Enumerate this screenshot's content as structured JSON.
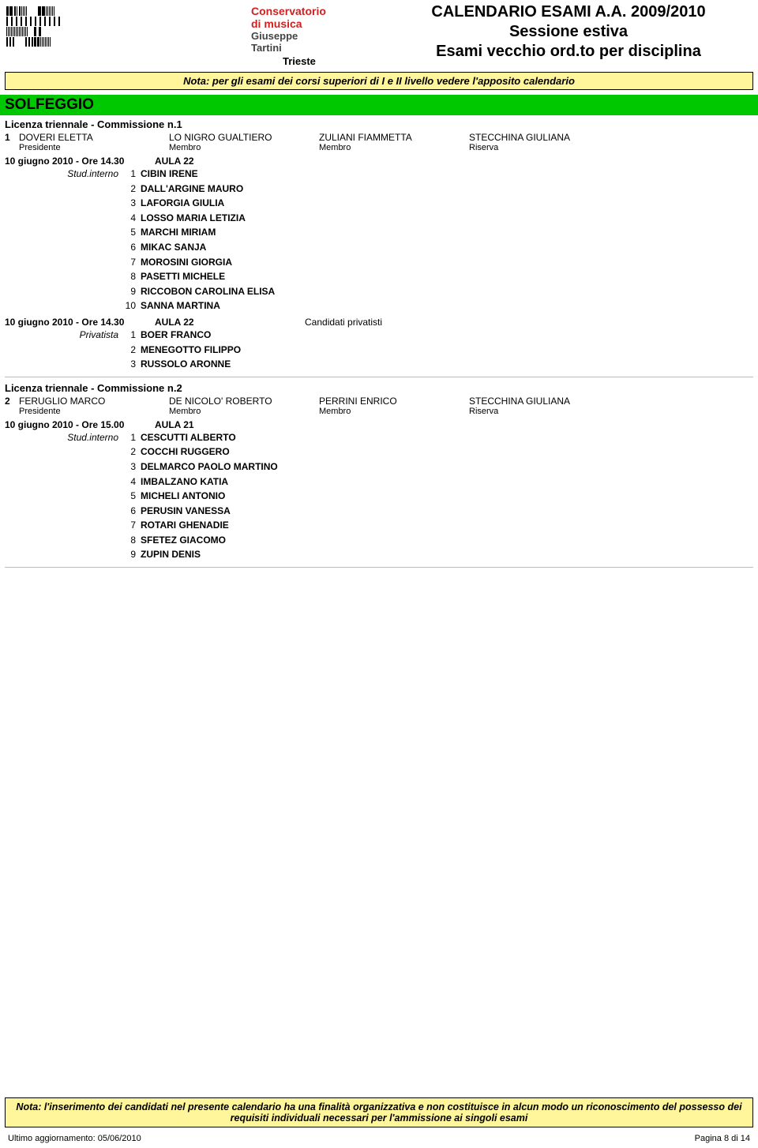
{
  "header": {
    "institution": {
      "line1": "Conservatorio",
      "line2": "di musica",
      "line3": "Giuseppe",
      "line4": "Tartini",
      "line5": "Trieste"
    },
    "title": {
      "line1": "CALENDARIO ESAMI A.A. 2009/2010",
      "line2": "Sessione estiva",
      "line3": "Esami vecchio ord.to per disciplina"
    }
  },
  "note_top": "Nota: per gli esami dei corsi superiori di I e II livello vedere l'apposito calendario",
  "subject": "SOLFEGGIO",
  "commissions": [
    {
      "title": "Licenza triennale - Commissione n.1",
      "number": "1",
      "panel": [
        {
          "name": "DOVERI ELETTA",
          "role": "Presidente"
        },
        {
          "name": "LO NIGRO GUALTIERO",
          "role": "Membro"
        },
        {
          "name": "ZULIANI FIAMMETTA",
          "role": "Membro"
        },
        {
          "name": "STECCHINA GIULIANA",
          "role": "Riserva"
        }
      ],
      "sessions": [
        {
          "datetime": "10 giugno 2010 - Ore 14.30",
          "room": "AULA 22",
          "note": "",
          "type_label": "Stud.interno",
          "students": [
            "CIBIN IRENE",
            "DALL'ARGINE MAURO",
            "LAFORGIA GIULIA",
            "LOSSO MARIA LETIZIA",
            "MARCHI MIRIAM",
            "MIKAC SANJA",
            "MOROSINI GIORGIA",
            "PASETTI MICHELE",
            "RICCOBON CAROLINA ELISA",
            "SANNA MARTINA"
          ]
        },
        {
          "datetime": "10 giugno 2010 - Ore 14.30",
          "room": "AULA 22",
          "note": "Candidati privatisti",
          "type_label": "Privatista",
          "students": [
            "BOER FRANCO",
            "MENEGOTTO FILIPPO",
            "RUSSOLO ARONNE"
          ]
        }
      ]
    },
    {
      "title": "Licenza triennale - Commissione n.2",
      "number": "2",
      "panel": [
        {
          "name": "FERUGLIO MARCO",
          "role": "Presidente"
        },
        {
          "name": "DE NICOLO' ROBERTO",
          "role": "Membro"
        },
        {
          "name": "PERRINI ENRICO",
          "role": "Membro"
        },
        {
          "name": "STECCHINA GIULIANA",
          "role": "Riserva"
        }
      ],
      "sessions": [
        {
          "datetime": "10 giugno 2010 - Ore 15.00",
          "room": "AULA 21",
          "note": "",
          "type_label": "Stud.interno",
          "students": [
            "CESCUTTI ALBERTO",
            "COCCHI RUGGERO",
            "DELMARCO PAOLO MARTINO",
            "IMBALZANO KATIA",
            "MICHELI ANTONIO",
            "PERUSIN VANESSA",
            "ROTARI GHENADIE",
            "SFETEZ GIACOMO",
            "ZUPIN DENIS"
          ]
        }
      ]
    }
  ],
  "footer_note": "Nota: l'inserimento dei candidati nel presente calendario ha una finalità organizzativa e non costituisce in alcun modo un riconoscimento del possesso dei requisiti individuali necessari per l'ammissione ai singoli esami",
  "footer": {
    "left": "Ultimo aggiornamento: 05/06/2010",
    "right": "Pagina 8 di 14"
  }
}
